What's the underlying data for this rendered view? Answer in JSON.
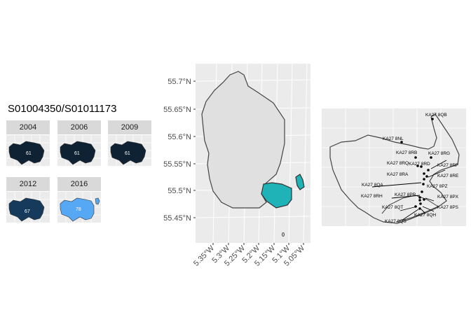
{
  "title": "S01004350/S01011173",
  "facets": [
    {
      "year": "2004",
      "value": "61",
      "fill": "#0e2233"
    },
    {
      "year": "2006",
      "value": "61",
      "fill": "#0e2233"
    },
    {
      "year": "2009",
      "value": "61",
      "fill": "#0e2233"
    },
    {
      "year": "2012",
      "value": "67",
      "fill": "#163a5c"
    },
    {
      "year": "2016",
      "value": "78",
      "fill": "#56a8f5"
    }
  ],
  "main_map": {
    "highlight_color": "#1fb3b8",
    "base_color": "#e0e0e0",
    "y_ticks": [
      "55.7°N",
      "55.65°N",
      "55.6°N",
      "55.55°N",
      "55.5°N",
      "55.45°N"
    ],
    "x_ticks": [
      "5.35°W",
      "5.3°W",
      "5.25°W",
      "5.2°W",
      "5.15°W",
      "5.1°W",
      "5.05°W"
    ]
  },
  "inset_map": {
    "postcodes": [
      "KA27 8QB",
      "KA27 8NL",
      "KA27 8RB",
      "KA27 8RG",
      "KA27 8RQ",
      "KA27 8RD",
      "KA27 8RF",
      "KA27 8RA",
      "KA27 8RE",
      "KA27 8QA",
      "KA27 8PZ",
      "KA27 8RH",
      "KA27 8PR",
      "KA27 8PX",
      "KA27 8QT",
      "KA27 8PS",
      "KA27 8QH",
      "KA27 8QS"
    ]
  }
}
